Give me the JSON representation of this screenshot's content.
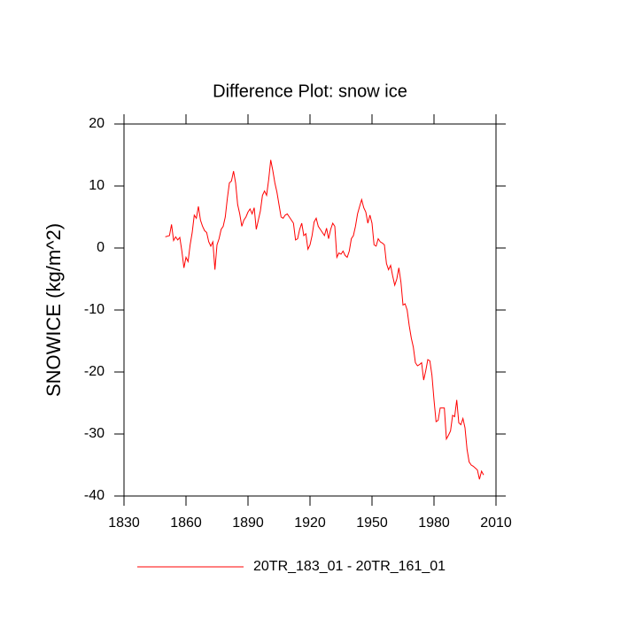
{
  "chart_data": {
    "type": "line",
    "title": "Difference Plot: snow ice",
    "y_label": "SNOWICE  (kg/m^2)",
    "x": [
      1850,
      1851,
      1852,
      1853,
      1854,
      1855,
      1856,
      1857,
      1858,
      1859,
      1860,
      1861,
      1862,
      1863,
      1864,
      1865,
      1866,
      1867,
      1868,
      1869,
      1870,
      1871,
      1872,
      1873,
      1874,
      1875,
      1876,
      1877,
      1878,
      1879,
      1880,
      1881,
      1882,
      1883,
      1884,
      1885,
      1886,
      1887,
      1888,
      1889,
      1890,
      1891,
      1892,
      1893,
      1894,
      1895,
      1896,
      1897,
      1898,
      1899,
      1900,
      1901,
      1902,
      1903,
      1904,
      1905,
      1906,
      1907,
      1908,
      1909,
      1910,
      1911,
      1912,
      1913,
      1914,
      1915,
      1916,
      1917,
      1918,
      1919,
      1920,
      1921,
      1922,
      1923,
      1924,
      1925,
      1926,
      1927,
      1928,
      1929,
      1930,
      1931,
      1932,
      1933,
      1934,
      1935,
      1936,
      1937,
      1938,
      1939,
      1940,
      1941,
      1942,
      1943,
      1944,
      1945,
      1946,
      1947,
      1948,
      1949,
      1950,
      1951,
      1952,
      1953,
      1954,
      1955,
      1956,
      1957,
      1958,
      1959,
      1960,
      1961,
      1962,
      1963,
      1964,
      1965,
      1966,
      1967,
      1968,
      1969,
      1970,
      1971,
      1972,
      1973,
      1974,
      1975,
      1976,
      1977,
      1978,
      1979,
      1980,
      1981,
      1982,
      1983,
      1984,
      1985,
      1986,
      1987,
      1988,
      1989,
      1990,
      1991,
      1992,
      1993,
      1994,
      1995,
      1996,
      1997,
      1998,
      1999,
      2000,
      2001,
      2002,
      2003,
      2004
    ],
    "series": [
      {
        "name": "20TR_183_01 - 20TR_161_01",
        "color": "#ff0000",
        "values": [
          1.8,
          1.9,
          2.0,
          3.8,
          1.2,
          1.8,
          1.3,
          1.7,
          -0.5,
          -3.2,
          -1.5,
          -2.2,
          0.5,
          2.5,
          5.3,
          4.8,
          6.7,
          4.5,
          3.5,
          2.8,
          2.5,
          1.0,
          0.3,
          1.0,
          -3.5,
          0.5,
          1.5,
          3.0,
          3.5,
          5.0,
          8.0,
          10.5,
          10.8,
          12.4,
          10.5,
          7.0,
          5.5,
          3.5,
          4.5,
          5.0,
          5.8,
          6.3,
          5.5,
          6.5,
          3.0,
          4.5,
          6.0,
          8.5,
          9.2,
          8.5,
          11.0,
          14.2,
          12.5,
          10.5,
          9.0,
          7.0,
          5.0,
          4.8,
          5.3,
          5.5,
          5.0,
          4.5,
          4.0,
          1.3,
          1.5,
          3.0,
          4.0,
          2.0,
          2.3,
          -0.2,
          0.5,
          2.0,
          4.2,
          4.8,
          3.5,
          3.0,
          2.5,
          2.0,
          3.2,
          1.5,
          3.0,
          4.0,
          3.5,
          -1.5,
          -0.8,
          -1.0,
          -0.5,
          -1.2,
          -1.5,
          -0.5,
          1.5,
          2.0,
          3.5,
          5.5,
          6.7,
          7.8,
          6.5,
          5.8,
          4.0,
          5.3,
          4.0,
          0.5,
          0.3,
          1.5,
          1.0,
          0.8,
          0.5,
          -2.5,
          -3.5,
          -2.8,
          -4.5,
          -6.0,
          -5.0,
          -3.2,
          -5.5,
          -9.2,
          -9.0,
          -10.0,
          -12.5,
          -14.5,
          -16.0,
          -18.5,
          -19.0,
          -18.8,
          -18.5,
          -21.3,
          -19.8,
          -18.0,
          -18.2,
          -20.5,
          -24.5,
          -28.0,
          -27.8,
          -25.8,
          -25.8,
          -25.8,
          -30.8,
          -30.2,
          -29.5,
          -27.0,
          -27.2,
          -24.5,
          -28.2,
          -28.5,
          -27.5,
          -29.0,
          -32.5,
          -34.5,
          -35.0,
          -35.2,
          -35.5,
          -35.8,
          -37.3,
          -36.0,
          -36.6
        ]
      }
    ],
    "xlim": [
      1830,
      2010
    ],
    "xticks": [
      1830,
      1860,
      1890,
      1920,
      1950,
      1980,
      2010
    ],
    "ylim": [
      -40,
      20
    ],
    "yticks": [
      -40,
      -30,
      -20,
      -10,
      0,
      10,
      20
    ],
    "legend": "bottom"
  }
}
